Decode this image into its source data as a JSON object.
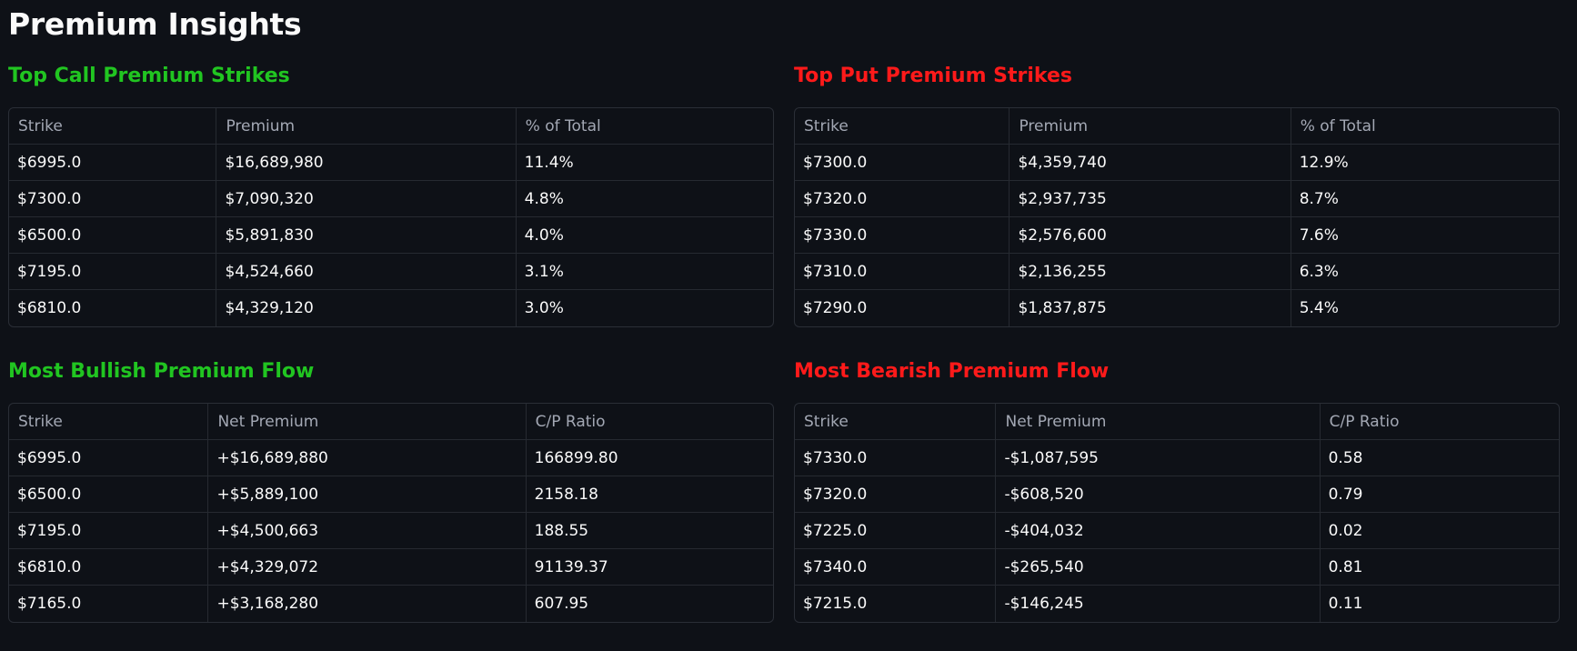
{
  "page_title": "Premium Insights",
  "colors": {
    "background": "#0e1117",
    "bullish": "#21c521",
    "bearish": "#ff1a1a",
    "header_text": "#a3a8b4",
    "border": "#262a31"
  },
  "top_call": {
    "title": "Top Call Premium Strikes",
    "headers": [
      "Strike",
      "Premium",
      "% of Total"
    ],
    "rows": [
      [
        "$6995.0",
        "$16,689,980",
        "11.4%"
      ],
      [
        "$7300.0",
        "$7,090,320",
        "4.8%"
      ],
      [
        "$6500.0",
        "$5,891,830",
        "4.0%"
      ],
      [
        "$7195.0",
        "$4,524,660",
        "3.1%"
      ],
      [
        "$6810.0",
        "$4,329,120",
        "3.0%"
      ]
    ]
  },
  "top_put": {
    "title": "Top Put Premium Strikes",
    "headers": [
      "Strike",
      "Premium",
      "% of Total"
    ],
    "rows": [
      [
        "$7300.0",
        "$4,359,740",
        "12.9%"
      ],
      [
        "$7320.0",
        "$2,937,735",
        "8.7%"
      ],
      [
        "$7330.0",
        "$2,576,600",
        "7.6%"
      ],
      [
        "$7310.0",
        "$2,136,255",
        "6.3%"
      ],
      [
        "$7290.0",
        "$1,837,875",
        "5.4%"
      ]
    ]
  },
  "bullish": {
    "title": "Most Bullish Premium Flow",
    "headers": [
      "Strike",
      "Net Premium",
      "C/P Ratio"
    ],
    "rows": [
      [
        "$6995.0",
        "+$16,689,880",
        "166899.80"
      ],
      [
        "$6500.0",
        "+$5,889,100",
        "2158.18"
      ],
      [
        "$7195.0",
        "+$4,500,663",
        "188.55"
      ],
      [
        "$6810.0",
        "+$4,329,072",
        "91139.37"
      ],
      [
        "$7165.0",
        "+$3,168,280",
        "607.95"
      ]
    ]
  },
  "bearish": {
    "title": "Most Bearish Premium Flow",
    "headers": [
      "Strike",
      "Net Premium",
      "C/P Ratio"
    ],
    "rows": [
      [
        "$7330.0",
        "-$1,087,595",
        "0.58"
      ],
      [
        "$7320.0",
        "-$608,520",
        "0.79"
      ],
      [
        "$7225.0",
        "-$404,032",
        "0.02"
      ],
      [
        "$7340.0",
        "-$265,540",
        "0.81"
      ],
      [
        "$7215.0",
        "-$146,245",
        "0.11"
      ]
    ]
  }
}
